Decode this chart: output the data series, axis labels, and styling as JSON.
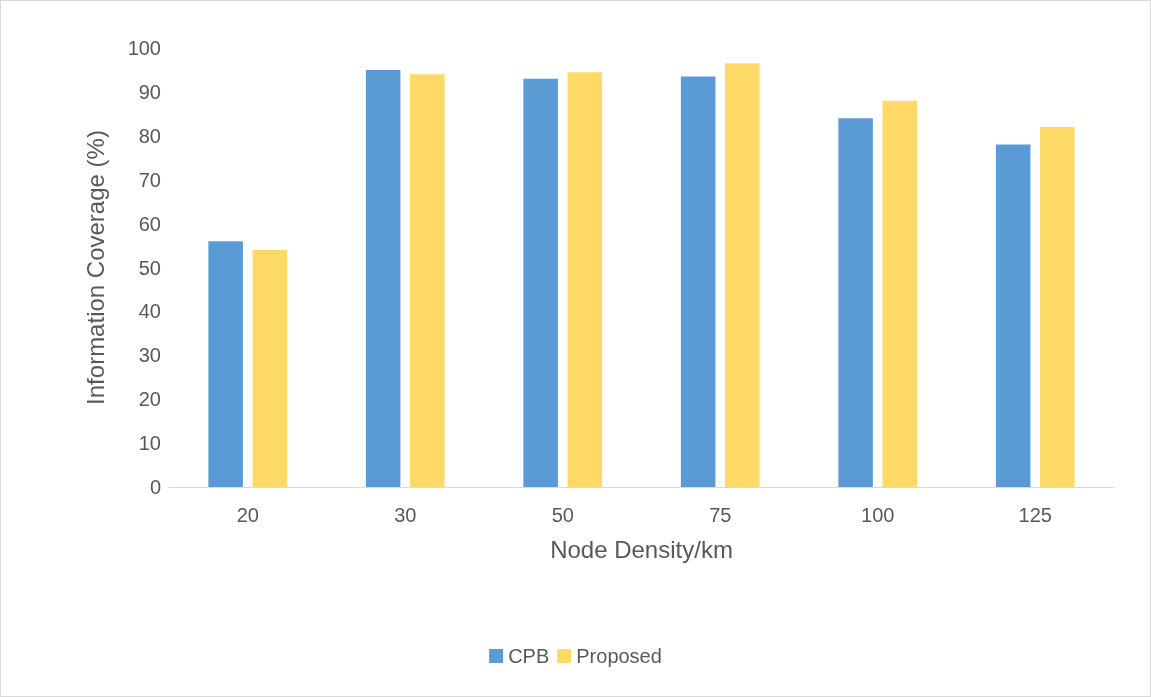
{
  "chart_data": {
    "type": "bar",
    "xlabel": "Node Density/km",
    "ylabel": "Information Coverage (%)",
    "categories": [
      "20",
      "30",
      "50",
      "75",
      "100",
      "125"
    ],
    "series": [
      {
        "name": "CPB",
        "color": "#5b9bd5",
        "values": [
          56,
          95,
          93,
          93.5,
          84,
          78
        ]
      },
      {
        "name": "Proposed",
        "color": "#ffd966",
        "values": [
          54,
          94,
          94.5,
          96.5,
          88,
          82
        ]
      }
    ],
    "ylim": [
      0,
      100
    ],
    "yticks": [
      0,
      10,
      20,
      30,
      40,
      50,
      60,
      70,
      80,
      90,
      100
    ],
    "grid": false,
    "legend": "bottom"
  }
}
